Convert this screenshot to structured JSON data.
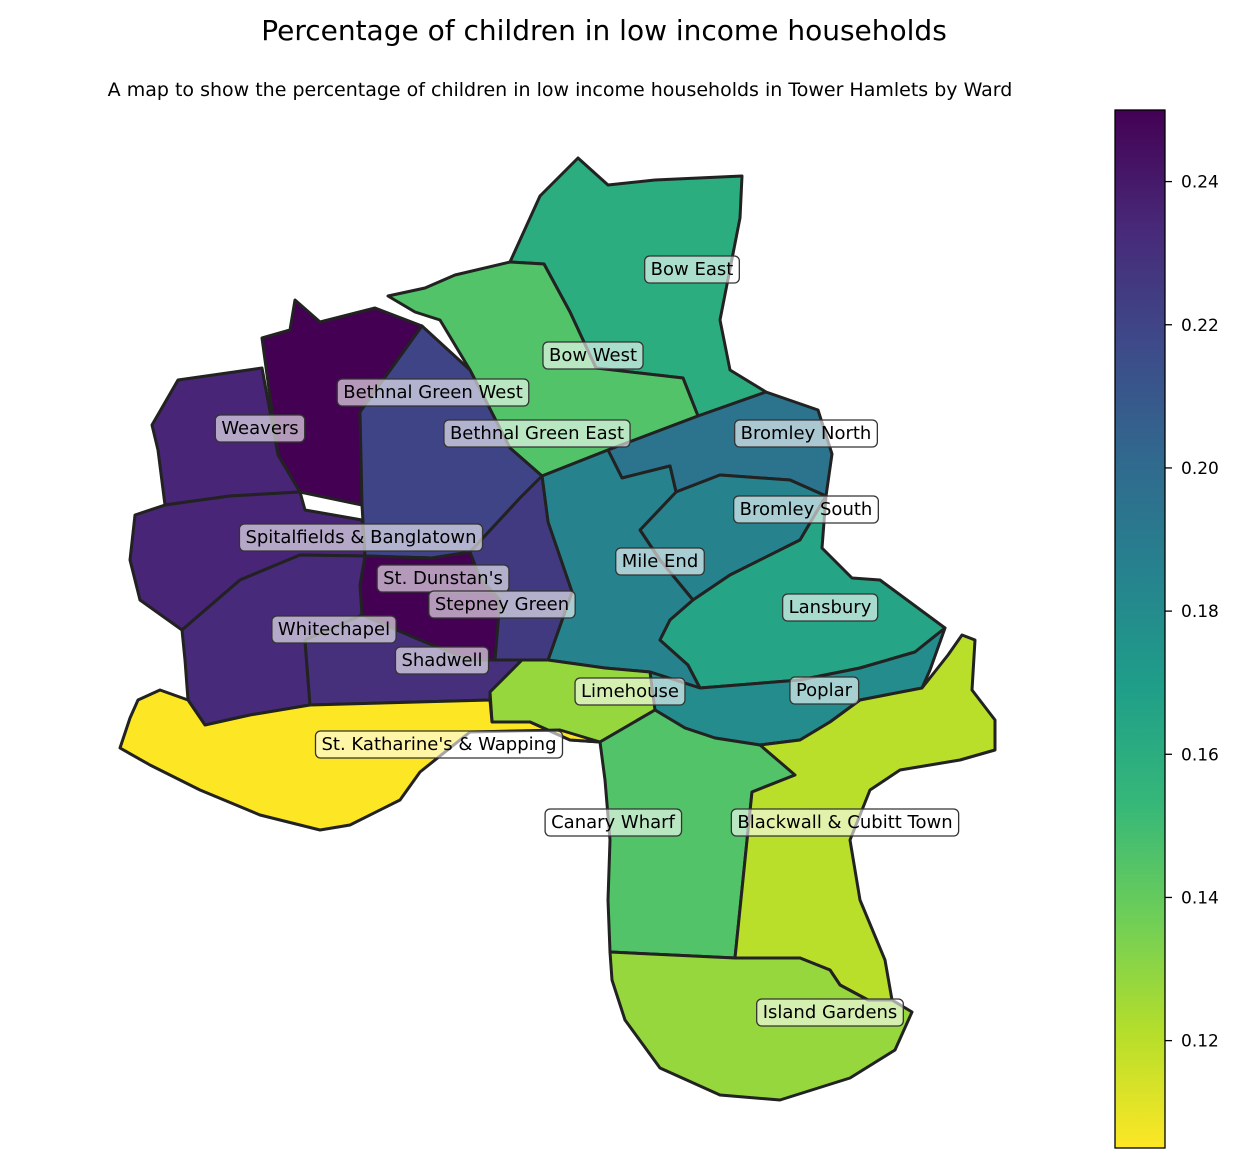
{
  "title": "Percentage of children in low income households",
  "subtitle": "A map to show the percentage of children in low income households in Tower Hamlets by Ward",
  "colormap": [
    "#fde725",
    "#b5de2b",
    "#6ece58",
    "#35b779",
    "#1f9e89",
    "#26828e",
    "#31688e",
    "#3e4989",
    "#482878",
    "#440154"
  ],
  "colorbar": {
    "min": 0.105,
    "max": 0.25,
    "ticks": [
      "0.12",
      "0.14",
      "0.16",
      "0.18",
      "0.20",
      "0.22",
      "0.24"
    ]
  },
  "wards": [
    {
      "id": "bow-east",
      "name": "Bow East",
      "value": 0.16
    },
    {
      "id": "bow-west",
      "name": "Bow West",
      "value": 0.145
    },
    {
      "id": "bethnal-green-west",
      "name": "Bethnal Green West",
      "value": 0.25
    },
    {
      "id": "bethnal-green-east",
      "name": "Bethnal Green East",
      "value": 0.22
    },
    {
      "id": "weavers",
      "name": "Weavers",
      "value": 0.235
    },
    {
      "id": "bromley-north",
      "name": "Bromley North",
      "value": 0.195
    },
    {
      "id": "bromley-south",
      "name": "Bromley South",
      "value": 0.185
    },
    {
      "id": "mile-end",
      "name": "Mile End",
      "value": 0.185
    },
    {
      "id": "spitalfields",
      "name": "Spitalfields & Banglatown",
      "value": 0.235
    },
    {
      "id": "st-dunstans",
      "name": "St. Dunstan's",
      "value": 0.25
    },
    {
      "id": "stepney-green",
      "name": "Stepney Green",
      "value": 0.225
    },
    {
      "id": "lansbury",
      "name": "Lansbury",
      "value": 0.165
    },
    {
      "id": "whitechapel",
      "name": "Whitechapel",
      "value": 0.233
    },
    {
      "id": "shadwell",
      "name": "Shadwell",
      "value": 0.23
    },
    {
      "id": "limehouse",
      "name": "Limehouse",
      "value": 0.128
    },
    {
      "id": "poplar",
      "name": "Poplar",
      "value": 0.18
    },
    {
      "id": "st-katharines",
      "name": "St. Katharine's & Wapping",
      "value": 0.105
    },
    {
      "id": "canary-wharf",
      "name": "Canary Wharf",
      "value": 0.145
    },
    {
      "id": "blackwall",
      "name": "Blackwall & Cubitt Town",
      "value": 0.12
    },
    {
      "id": "island-gardens",
      "name": "Island Gardens",
      "value": 0.128
    }
  ]
}
